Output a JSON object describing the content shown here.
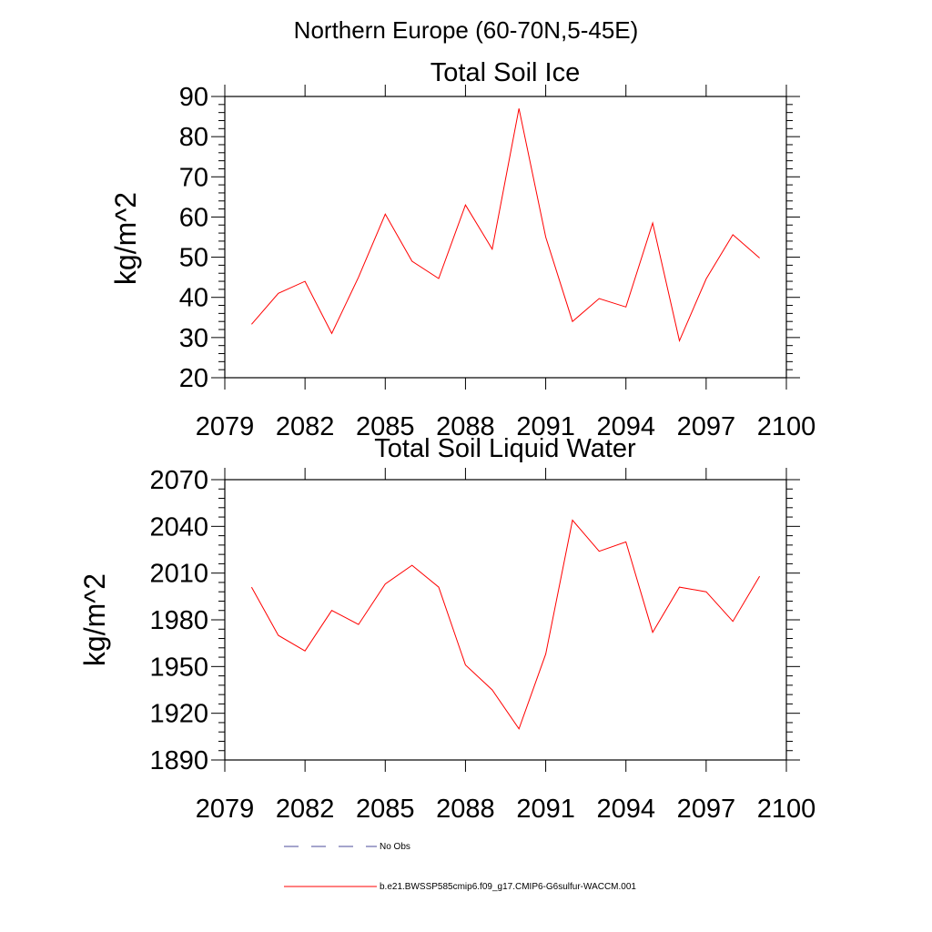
{
  "figure": {
    "suptitle": "Northern Europe (60-70N,5-45E)"
  },
  "chart_data": [
    {
      "type": "line",
      "title": "Total Soil Ice",
      "ylabel": "kg/m^2",
      "xlabel": "",
      "xlim": [
        2079,
        2100
      ],
      "ylim": [
        20,
        90
      ],
      "xticks": [
        2079,
        2082,
        2085,
        2088,
        2091,
        2094,
        2097,
        2100
      ],
      "xtick_labels": [
        "2079",
        "2082",
        "2085",
        "2088",
        "2091",
        "2094",
        "2097",
        "2100"
      ],
      "yticks": [
        20,
        30,
        40,
        50,
        60,
        70,
        80,
        90
      ],
      "ytick_labels": [
        "20",
        "30",
        "40",
        "50",
        "60",
        "70",
        "80",
        "90"
      ],
      "grid": false,
      "x": [
        2080,
        2081,
        2082,
        2083,
        2084,
        2085,
        2086,
        2087,
        2088,
        2089,
        2090,
        2091,
        2092,
        2093,
        2094,
        2095,
        2096,
        2097,
        2098,
        2099
      ],
      "series": [
        {
          "name": "b.e21.BWSSP585cmip6.f09_g17.CMIP6-G6sulfur-WACCM.001",
          "color": "#ff0000",
          "values": [
            33.3,
            41.0,
            44.0,
            31.0,
            45.0,
            60.7,
            49.0,
            44.7,
            63.0,
            52.0,
            87.0,
            55.0,
            34.0,
            39.7,
            37.6,
            58.5,
            29.2,
            44.6,
            55.6,
            49.8
          ]
        }
      ]
    },
    {
      "type": "line",
      "title": "Total Soil Liquid Water",
      "ylabel": "kg/m^2",
      "xlabel": "",
      "xlim": [
        2079,
        2100
      ],
      "ylim": [
        1890,
        2070
      ],
      "xticks": [
        2079,
        2082,
        2085,
        2088,
        2091,
        2094,
        2097,
        2100
      ],
      "xtick_labels": [
        "2079",
        "2082",
        "2085",
        "2088",
        "2091",
        "2094",
        "2097",
        "2100"
      ],
      "yticks": [
        1890,
        1920,
        1950,
        1980,
        2010,
        2040,
        2070
      ],
      "ytick_labels": [
        "1890",
        "1920",
        "1950",
        "1980",
        "2010",
        "2040",
        "2070"
      ],
      "grid": false,
      "x": [
        2080,
        2081,
        2082,
        2083,
        2084,
        2085,
        2086,
        2087,
        2088,
        2089,
        2090,
        2091,
        2092,
        2093,
        2094,
        2095,
        2096,
        2097,
        2098,
        2099
      ],
      "series": [
        {
          "name": "b.e21.BWSSP585cmip6.f09_g17.CMIP6-G6sulfur-WACCM.001",
          "color": "#ff0000",
          "values": [
            2001,
            1970,
            1960,
            1986,
            1977,
            2003,
            2015,
            2001,
            1951,
            1935,
            1910,
            1958,
            2044,
            2024,
            2030,
            1972,
            2001,
            1998,
            1979,
            2008
          ]
        }
      ]
    }
  ],
  "legend": {
    "placement": "bottom",
    "items": [
      {
        "label": "No Obs",
        "color": "#4b4b9b",
        "style": "dashed"
      },
      {
        "label": "b.e21.BWSSP585cmip6.f09_g17.CMIP6-G6sulfur-WACCM.001",
        "color": "#ff0000",
        "style": "solid"
      }
    ]
  }
}
